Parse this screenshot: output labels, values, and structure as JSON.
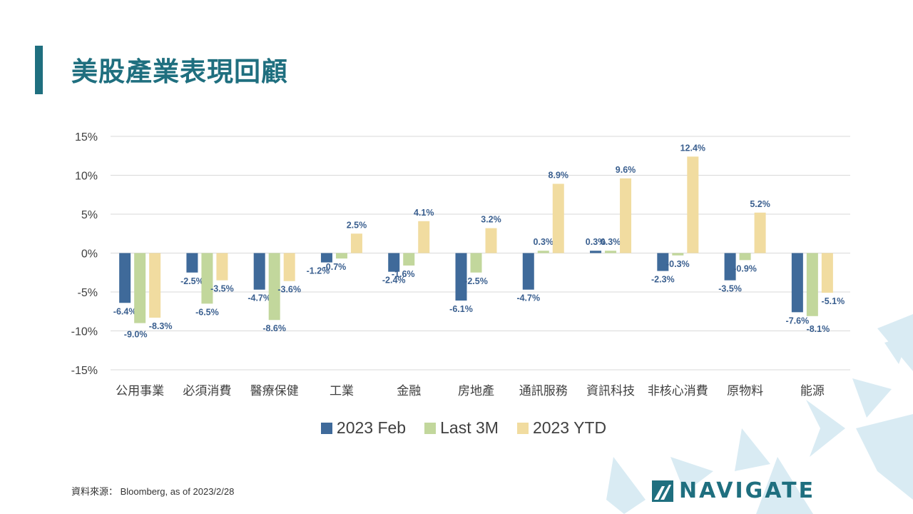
{
  "page": {
    "title": "美股產業表現回顧"
  },
  "source": "資料來源： Bloomberg,  as of 2023/2/28",
  "logo": {
    "text": "NAVIGATE",
    "icon": "navigate-logo-icon"
  },
  "colors": {
    "title": "#1f6f7f",
    "series": [
      "#3f6a9a",
      "#c2d79c",
      "#f1dca0"
    ],
    "label": "#3a5f8f",
    "grid": "#d9d9d9",
    "decor": "#d9ebf3"
  },
  "chart_data": {
    "type": "bar",
    "categories": [
      "公用事業",
      "必須消費",
      "醫療保健",
      "工業",
      "金融",
      "房地產",
      "通訊服務",
      "資訊科技",
      "非核心消費",
      "原物料",
      "能源"
    ],
    "series": [
      {
        "name": "2023 Feb",
        "values": [
          -6.4,
          -2.5,
          -4.7,
          -1.2,
          -2.4,
          -6.1,
          -4.7,
          0.3,
          -2.3,
          -3.5,
          -7.6
        ]
      },
      {
        "name": "Last 3M",
        "values": [
          -9.0,
          -6.5,
          -8.6,
          -0.7,
          -1.6,
          -2.5,
          0.3,
          0.3,
          -0.3,
          -0.9,
          -8.1
        ]
      },
      {
        "name": "2023 YTD",
        "values": [
          -8.3,
          -3.5,
          -3.6,
          2.5,
          4.1,
          3.2,
          8.9,
          9.6,
          12.4,
          5.2,
          -5.1
        ]
      }
    ],
    "ylim": [
      -15,
      15
    ],
    "yticks": [
      "15%",
      "10%",
      "5%",
      "0%",
      "-5%",
      "-10%",
      "-15%"
    ],
    "grid": true,
    "legend": "bottom",
    "value_suffix": "%"
  }
}
